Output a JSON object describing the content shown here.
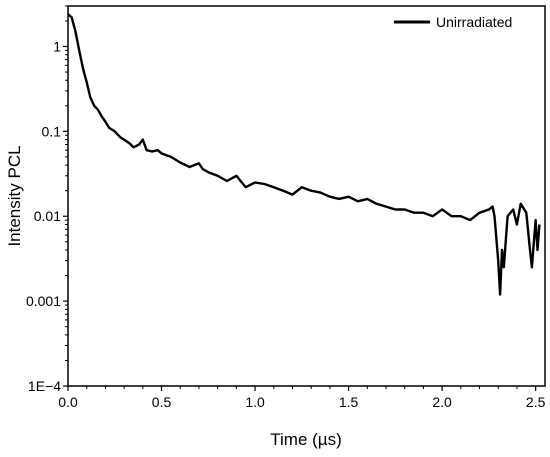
{
  "chart_data": {
    "type": "line",
    "title": "",
    "xlabel": "Time (µs)",
    "ylabel": "Intensity PCL",
    "xlim": [
      0.0,
      2.55
    ],
    "ylim": [
      0.0001,
      3
    ],
    "yscale": "log",
    "x_ticks": [
      0.0,
      0.5,
      1.0,
      1.5,
      2.0,
      2.5
    ],
    "x_tick_labels": [
      "0.0",
      "0.5",
      "1.0",
      "1.5",
      "2.0",
      "2.5"
    ],
    "y_ticks": [
      1,
      0.1,
      0.01,
      0.001,
      0.0001
    ],
    "y_tick_labels": [
      "1",
      "0.1",
      "0.01",
      "0.001",
      "1E−4"
    ],
    "grid": false,
    "legend_position": "top-right",
    "line_color": "#000000",
    "series": [
      {
        "name": "Unirradiated",
        "x": [
          0.0,
          0.02,
          0.04,
          0.06,
          0.08,
          0.1,
          0.12,
          0.14,
          0.16,
          0.18,
          0.2,
          0.22,
          0.25,
          0.28,
          0.3,
          0.33,
          0.35,
          0.38,
          0.4,
          0.42,
          0.45,
          0.48,
          0.5,
          0.55,
          0.6,
          0.65,
          0.7,
          0.72,
          0.75,
          0.8,
          0.85,
          0.9,
          0.95,
          1.0,
          1.05,
          1.1,
          1.15,
          1.2,
          1.25,
          1.3,
          1.35,
          1.4,
          1.45,
          1.5,
          1.55,
          1.6,
          1.65,
          1.7,
          1.75,
          1.8,
          1.85,
          1.9,
          1.95,
          2.0,
          2.05,
          2.1,
          2.15,
          2.2,
          2.25,
          2.27,
          2.28,
          2.3,
          2.31,
          2.32,
          2.33,
          2.35,
          2.38,
          2.4,
          2.42,
          2.45,
          2.47,
          2.48,
          2.5,
          2.51,
          2.52
        ],
        "y": [
          2.4,
          2.2,
          1.5,
          0.9,
          0.55,
          0.38,
          0.25,
          0.2,
          0.18,
          0.15,
          0.13,
          0.11,
          0.1,
          0.085,
          0.08,
          0.072,
          0.065,
          0.07,
          0.08,
          0.06,
          0.058,
          0.06,
          0.055,
          0.05,
          0.043,
          0.038,
          0.042,
          0.036,
          0.033,
          0.03,
          0.026,
          0.03,
          0.022,
          0.025,
          0.024,
          0.022,
          0.02,
          0.018,
          0.022,
          0.02,
          0.019,
          0.017,
          0.016,
          0.017,
          0.015,
          0.016,
          0.014,
          0.013,
          0.012,
          0.012,
          0.011,
          0.011,
          0.01,
          0.012,
          0.01,
          0.01,
          0.009,
          0.011,
          0.012,
          0.013,
          0.01,
          0.003,
          0.0012,
          0.004,
          0.0025,
          0.01,
          0.012,
          0.008,
          0.014,
          0.011,
          0.004,
          0.0025,
          0.009,
          0.004,
          0.008
        ]
      }
    ]
  }
}
